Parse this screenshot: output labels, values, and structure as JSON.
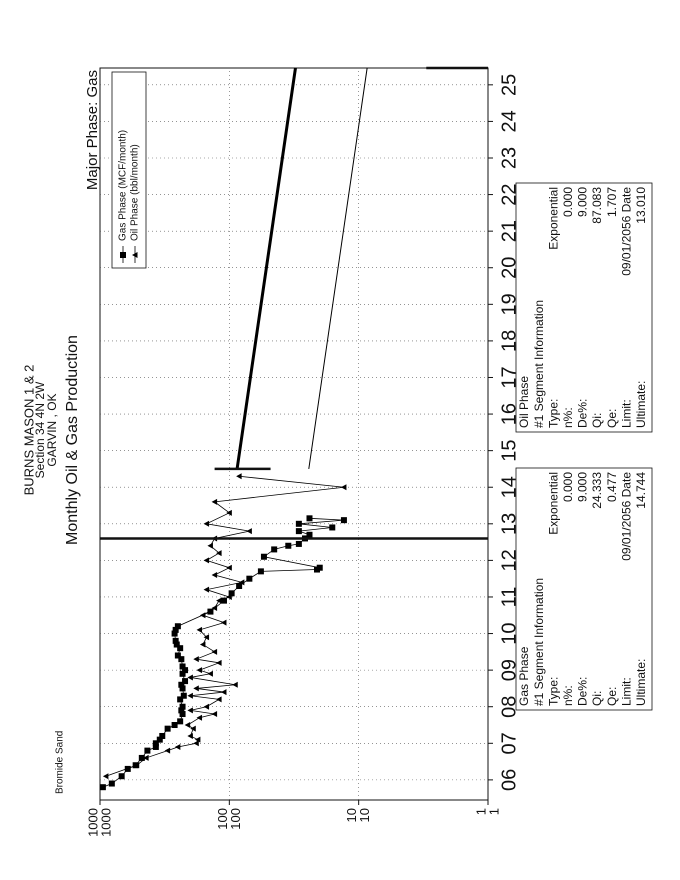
{
  "chart_data": {
    "type": "line",
    "header": [
      "BURNS MASON 1 & 2",
      "Section 34 4N 2W",
      "GARVIN , OK"
    ],
    "title": "Monthly Oil & Gas Production",
    "major_phase_label": "Major Phase: Gas",
    "annotation": "Bromide Sand",
    "yscale": "log",
    "grid": true,
    "legend": "upper right",
    "xlim": [
      2005.45,
      2025.46
    ],
    "xticks": [
      {
        "value": 2006,
        "label": "06"
      },
      {
        "value": 2007,
        "label": "07"
      },
      {
        "value": 2008,
        "label": "08"
      },
      {
        "value": 2009,
        "label": "09"
      },
      {
        "value": 2010,
        "label": "10"
      },
      {
        "value": 2011,
        "label": "11"
      },
      {
        "value": 2012,
        "label": "12"
      },
      {
        "value": 2013,
        "label": "13"
      },
      {
        "value": 2014,
        "label": "14"
      },
      {
        "value": 2015,
        "label": "15"
      },
      {
        "value": 2016,
        "label": "16"
      },
      {
        "value": 2017,
        "label": "17"
      },
      {
        "value": 2018,
        "label": "18"
      },
      {
        "value": 2019,
        "label": "19"
      },
      {
        "value": 2020,
        "label": "20"
      },
      {
        "value": 2021,
        "label": "21"
      },
      {
        "value": 2022,
        "label": "22"
      },
      {
        "value": 2023,
        "label": "23"
      },
      {
        "value": 2024,
        "label": "24"
      },
      {
        "value": 2025,
        "label": "25"
      }
    ],
    "ylim": [
      1,
      1000
    ],
    "yticks": [
      1,
      10,
      100,
      1000
    ],
    "y2lim": [
      1,
      1000
    ],
    "y2ticks": [
      1,
      10,
      100,
      1000
    ],
    "series": [
      {
        "name": "Gas Phase (MCF/month)",
        "color": "#000000",
        "marker": "square",
        "x": [
          2005.8,
          2005.9,
          2006.1,
          2006.3,
          2006.4,
          2006.6,
          2006.8,
          2006.9,
          2007.0,
          2007.1,
          2007.2,
          2007.4,
          2007.5,
          2007.6,
          2007.8,
          2007.9,
          2008.0,
          2008.2,
          2008.3,
          2008.5,
          2008.6,
          2008.7,
          2008.9,
          2009.0,
          2009.1,
          2009.3,
          2009.4,
          2009.6,
          2009.7,
          2009.8,
          2010.0,
          2010.1,
          2010.2,
          2010.6,
          2010.9,
          2011.1,
          2011.3,
          2011.5,
          2011.7,
          2011.75,
          2011.8,
          2012.1,
          2012.3,
          2012.4,
          2012.45,
          2012.6,
          2012.7,
          2012.8,
          2012.9,
          2013.0,
          2013.1,
          2013.15
        ],
        "values": [
          950,
          810,
          680,
          610,
          530,
          475,
          430,
          370,
          370,
          345,
          330,
          300,
          265,
          240,
          230,
          235,
          230,
          240,
          225,
          230,
          235,
          220,
          230,
          220,
          230,
          235,
          250,
          240,
          255,
          260,
          265,
          260,
          250,
          140,
          110,
          96,
          84,
          70,
          57,
          21,
          20,
          54,
          45,
          35,
          29,
          26,
          24,
          29,
          16,
          29,
          13,
          24
        ]
      },
      {
        "name": "Oil Phase (bbl/month)",
        "color": "#000000",
        "marker": "triangle",
        "x": [
          2006.1,
          2006.4,
          2006.6,
          2006.8,
          2006.9,
          2007.0,
          2007.1,
          2007.2,
          2007.4,
          2007.5,
          2007.7,
          2007.8,
          2007.9,
          2008.0,
          2008.2,
          2008.3,
          2008.4,
          2008.5,
          2008.6,
          2008.8,
          2008.9,
          2009.0,
          2009.2,
          2009.3,
          2009.5,
          2009.7,
          2009.9,
          2010.1,
          2010.3,
          2010.5,
          2010.7,
          2010.9,
          2011.0,
          2011.2,
          2011.4,
          2011.6,
          2011.8,
          2012.0,
          2012.2,
          2012.4,
          2012.6,
          2012.8,
          2013.0,
          2013.3,
          2013.6,
          2014.0,
          2014.3
        ],
        "values": [
          900,
          520,
          440,
          300,
          250,
          180,
          175,
          200,
          190,
          210,
          170,
          130,
          200,
          150,
          120,
          200,
          110,
          180,
          90,
          200,
          140,
          170,
          120,
          180,
          130,
          160,
          150,
          170,
          110,
          160,
          130,
          120,
          100,
          150,
          80,
          130,
          100,
          150,
          120,
          140,
          130,
          70,
          150,
          100,
          130,
          13,
          84
        ]
      }
    ],
    "forecasts": [
      {
        "color": "#000000",
        "line_width": 1,
        "x": [
          2014.5,
          2025.46
        ],
        "values": [
          24.3,
          8.6
        ]
      },
      {
        "color": "#000000",
        "line_width": 3,
        "x": [
          2014.5,
          2025.46
        ],
        "values": [
          87.1,
          30.8
        ]
      }
    ],
    "segment_lines": [
      {
        "x": 2012.6,
        "y": [
          1,
          1000
        ]
      },
      {
        "x": 2014.5,
        "y": [
          48,
          130
        ]
      },
      {
        "x": 2025.46,
        "y": [
          1,
          3
        ]
      }
    ]
  },
  "info_boxes": [
    {
      "title": "Gas Phase",
      "subtitle": "#1  Segment Information",
      "rows": [
        [
          "Type:",
          "Exponential"
        ],
        [
          "n%:",
          "0.000"
        ],
        [
          "De%:",
          "9.000"
        ],
        [
          "Qi:",
          "24.333"
        ],
        [
          "Qe:",
          "0.477"
        ],
        [
          "Limit:",
          "09/01/2056 Date"
        ],
        [
          "Ultimate:",
          "14.744"
        ]
      ]
    },
    {
      "title": "Oil Phase",
      "subtitle": "#1  Segment Information",
      "rows": [
        [
          "Type:",
          "Exponential"
        ],
        [
          "n%:",
          "0.000"
        ],
        [
          "De%:",
          "9.000"
        ],
        [
          "Qi:",
          "87.083"
        ],
        [
          "Qe:",
          "1.707"
        ],
        [
          "Limit:",
          "09/01/2056 Date"
        ],
        [
          "Ultimate:",
          "13.010"
        ]
      ]
    }
  ]
}
